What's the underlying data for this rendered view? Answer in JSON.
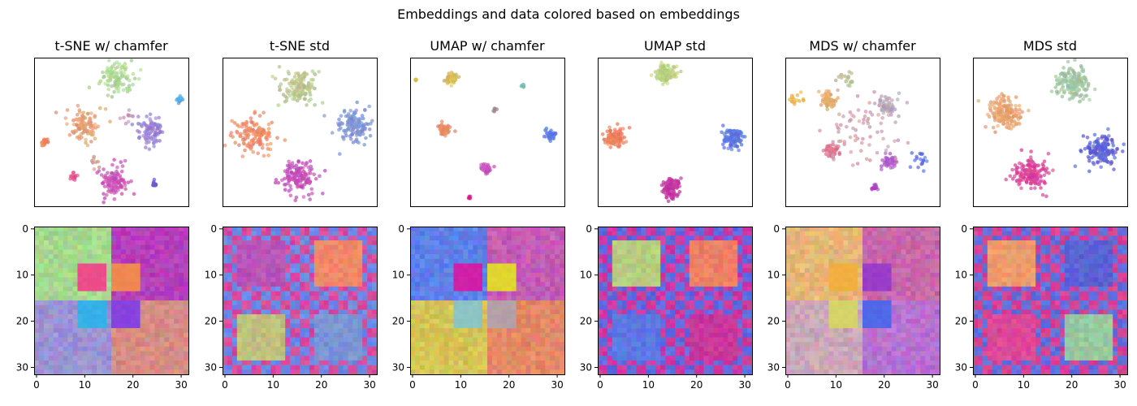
{
  "figure": {
    "suptitle": "Embeddings and data colored based on embeddings"
  },
  "chart_data": [
    {
      "type": "scatter",
      "title": "t-SNE w/ chamfer",
      "axes_visible": false,
      "clusters": [
        {
          "x": 0.54,
          "y": 0.14,
          "spread": 0.07,
          "n": 110,
          "color": "#a8d58e"
        },
        {
          "x": 0.32,
          "y": 0.45,
          "spread": 0.07,
          "n": 110,
          "color": "#e59d6e"
        },
        {
          "x": 0.75,
          "y": 0.49,
          "spread": 0.06,
          "n": 100,
          "color": "#9a82d4"
        },
        {
          "x": 0.52,
          "y": 0.84,
          "spread": 0.07,
          "n": 110,
          "color": "#c94cb8"
        },
        {
          "x": 0.94,
          "y": 0.28,
          "spread": 0.015,
          "n": 18,
          "color": "#55a5e6"
        },
        {
          "x": 0.07,
          "y": 0.57,
          "spread": 0.015,
          "n": 18,
          "color": "#ef7f55"
        },
        {
          "x": 0.26,
          "y": 0.8,
          "spread": 0.015,
          "n": 18,
          "color": "#e6508f"
        },
        {
          "x": 0.78,
          "y": 0.85,
          "spread": 0.012,
          "n": 14,
          "color": "#6a55d8"
        },
        {
          "x": 0.61,
          "y": 0.4,
          "spread": 0.03,
          "n": 10,
          "color": "#c090c0"
        },
        {
          "x": 0.4,
          "y": 0.7,
          "spread": 0.03,
          "n": 8,
          "color": "#d09080"
        }
      ]
    },
    {
      "type": "scatter",
      "title": "t-SNE std",
      "axes_visible": false,
      "clusters": [
        {
          "x": 0.5,
          "y": 0.19,
          "spread": 0.08,
          "n": 140,
          "color": "#b8c68a"
        },
        {
          "x": 0.2,
          "y": 0.52,
          "spread": 0.08,
          "n": 140,
          "color": "#ef8a66"
        },
        {
          "x": 0.84,
          "y": 0.46,
          "spread": 0.08,
          "n": 140,
          "color": "#7c93d6"
        },
        {
          "x": 0.5,
          "y": 0.81,
          "spread": 0.08,
          "n": 140,
          "color": "#c34bb9"
        }
      ]
    },
    {
      "type": "scatter",
      "title": "UMAP w/ chamfer",
      "axes_visible": false,
      "clusters": [
        {
          "x": 0.27,
          "y": 0.14,
          "spread": 0.025,
          "n": 60,
          "color": "#d4c05a"
        },
        {
          "x": 0.22,
          "y": 0.48,
          "spread": 0.025,
          "n": 50,
          "color": "#e48a62"
        },
        {
          "x": 0.91,
          "y": 0.52,
          "spread": 0.022,
          "n": 50,
          "color": "#5b7fe8"
        },
        {
          "x": 0.49,
          "y": 0.75,
          "spread": 0.022,
          "n": 40,
          "color": "#c850c0"
        },
        {
          "x": 0.73,
          "y": 0.19,
          "spread": 0.008,
          "n": 8,
          "color": "#70c4b0"
        },
        {
          "x": 0.55,
          "y": 0.35,
          "spread": 0.008,
          "n": 6,
          "color": "#a09090"
        },
        {
          "x": 0.04,
          "y": 0.15,
          "spread": 0.006,
          "n": 6,
          "color": "#e0c040"
        },
        {
          "x": 0.38,
          "y": 0.94,
          "spread": 0.008,
          "n": 6,
          "color": "#e02080"
        }
      ]
    },
    {
      "type": "scatter",
      "title": "UMAP std",
      "axes_visible": false,
      "clusters": [
        {
          "x": 0.44,
          "y": 0.11,
          "spread": 0.04,
          "n": 120,
          "color": "#b8cf7e"
        },
        {
          "x": 0.11,
          "y": 0.54,
          "spread": 0.04,
          "n": 120,
          "color": "#ef7f5e"
        },
        {
          "x": 0.88,
          "y": 0.54,
          "spread": 0.04,
          "n": 120,
          "color": "#5c76e4"
        },
        {
          "x": 0.48,
          "y": 0.88,
          "spread": 0.04,
          "n": 120,
          "color": "#c4389f"
        }
      ]
    },
    {
      "type": "scatter",
      "title": "MDS w/ chamfer",
      "axes_visible": false,
      "clusters": [
        {
          "x": 0.28,
          "y": 0.28,
          "spread": 0.035,
          "n": 60,
          "color": "#e6a868"
        },
        {
          "x": 0.66,
          "y": 0.33,
          "spread": 0.04,
          "n": 60,
          "color": "#b4a6b6"
        },
        {
          "x": 0.3,
          "y": 0.63,
          "spread": 0.035,
          "n": 50,
          "color": "#e0708e"
        },
        {
          "x": 0.67,
          "y": 0.7,
          "spread": 0.03,
          "n": 50,
          "color": "#b05cc8"
        },
        {
          "x": 0.4,
          "y": 0.13,
          "spread": 0.04,
          "n": 20,
          "color": "#b8c090"
        },
        {
          "x": 0.07,
          "y": 0.28,
          "spread": 0.025,
          "n": 16,
          "color": "#f0b040"
        },
        {
          "x": 0.87,
          "y": 0.68,
          "spread": 0.05,
          "n": 18,
          "color": "#6070e0"
        },
        {
          "x": 0.58,
          "y": 0.88,
          "spread": 0.015,
          "n": 14,
          "color": "#b040c0"
        },
        {
          "x": 0.5,
          "y": 0.5,
          "spread": 0.16,
          "n": 70,
          "color": "#d098a8"
        }
      ]
    },
    {
      "type": "scatter",
      "title": "MDS std",
      "axes_visible": false,
      "clusters": [
        {
          "x": 0.65,
          "y": 0.17,
          "spread": 0.07,
          "n": 160,
          "color": "#9cc4a0"
        },
        {
          "x": 0.21,
          "y": 0.37,
          "spread": 0.07,
          "n": 160,
          "color": "#e8a06c"
        },
        {
          "x": 0.84,
          "y": 0.62,
          "spread": 0.07,
          "n": 160,
          "color": "#5a60d8"
        },
        {
          "x": 0.37,
          "y": 0.78,
          "spread": 0.07,
          "n": 160,
          "color": "#d8409a"
        }
      ]
    },
    {
      "type": "heatmap",
      "grid": 32,
      "pattern": "smooth",
      "quadrants": {
        "tl": "#a6d88e",
        "tr": "#b63fba",
        "bl": "#9a92d6",
        "br": "#d78c84"
      },
      "centers": {
        "tl": "#ec4e8a",
        "tr": "#f08850",
        "bl": "#36b0e8",
        "br": "#8842de"
      },
      "xticks": [
        0,
        10,
        20,
        30
      ],
      "yticks": [
        0,
        10,
        20,
        30
      ],
      "xlim": [
        -0.5,
        31.5
      ],
      "ylim": [
        31.5,
        -0.5
      ]
    },
    {
      "type": "heatmap",
      "grid": 32,
      "pattern": "checker",
      "quadrants": {
        "tl": "#b855b8",
        "tr": "#ef8766",
        "bl": "#c0c07e",
        "br": "#7c94d4"
      },
      "checker_colors": [
        "#d84a9e",
        "#9ed08a",
        "#f08458",
        "#6a8ae6"
      ],
      "xticks": [
        0,
        10,
        20,
        30
      ],
      "yticks": [
        0,
        10,
        20,
        30
      ],
      "xlim": [
        -0.5,
        31.5
      ],
      "ylim": [
        31.5,
        -0.5
      ]
    },
    {
      "type": "heatmap",
      "grid": 32,
      "pattern": "smooth",
      "quadrants": {
        "tl": "#5e80e8",
        "tr": "#c45cb4",
        "bl": "#d4c456",
        "br": "#e48866"
      },
      "centers": {
        "tl": "#d020a8",
        "tr": "#e0d630",
        "bl": "#8cc4c4",
        "br": "#b4a0a8"
      },
      "xticks": [
        0,
        10,
        20,
        30
      ],
      "yticks": [
        0,
        10,
        20,
        30
      ],
      "xlim": [
        -0.5,
        31.5
      ],
      "ylim": [
        31.5,
        -0.5
      ]
    },
    {
      "type": "heatmap",
      "grid": 32,
      "pattern": "checker",
      "quadrants": {
        "tl": "#b6cc80",
        "tr": "#ef8066",
        "bl": "#5c78e4",
        "br": "#c8379c"
      },
      "checker_colors": [
        "#5c6ae0",
        "#a8d08a",
        "#ee7c5c",
        "#d038a0"
      ],
      "xticks": [
        0,
        10,
        20,
        30
      ],
      "yticks": [
        0,
        10,
        20,
        30
      ],
      "xlim": [
        -0.5,
        31.5
      ],
      "ylim": [
        31.5,
        -0.5
      ]
    },
    {
      "type": "heatmap",
      "grid": 32,
      "pattern": "smooth",
      "quadrants": {
        "tl": "#e6b876",
        "tr": "#c868aa",
        "bl": "#cca8b8",
        "br": "#b870d0"
      },
      "centers": {
        "tl": "#f0b040",
        "tr": "#9a3cc8",
        "bl": "#d4d468",
        "br": "#5068e8"
      },
      "xticks": [
        0,
        10,
        20,
        30
      ],
      "yticks": [
        0,
        10,
        20,
        30
      ],
      "xlim": [
        -0.5,
        31.5
      ],
      "ylim": [
        31.5,
        -0.5
      ]
    },
    {
      "type": "heatmap",
      "grid": 32,
      "pattern": "checker",
      "quadrants": {
        "tl": "#ec9c6c",
        "tr": "#5a62d6",
        "bl": "#dc4898",
        "br": "#98c8a0"
      },
      "checker_colors": [
        "#d84094",
        "#98cca0",
        "#f0a060",
        "#6070dc"
      ],
      "xticks": [
        0,
        10,
        20,
        30
      ],
      "yticks": [
        0,
        10,
        20,
        30
      ],
      "xlim": [
        -0.5,
        31.5
      ],
      "ylim": [
        31.5,
        -0.5
      ]
    }
  ]
}
